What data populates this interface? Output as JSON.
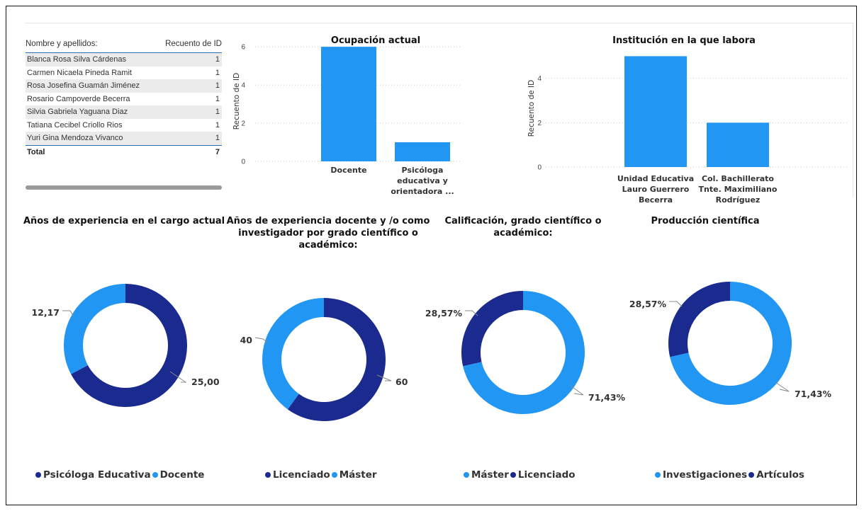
{
  "colors": {
    "dark": "#1a2a8f",
    "light": "#2196f3",
    "grid": "#c8c8c8"
  },
  "table": {
    "header_name": "Nombre y apellidos:",
    "header_count": "Recuento de ID",
    "rows": [
      {
        "name": "Blanca Rosa Silva Cárdenas",
        "count": "1"
      },
      {
        "name": "Carmen Nicaela Pineda Ramit",
        "count": "1"
      },
      {
        "name": "Rosa Josefina Guamán Jiménez",
        "count": "1"
      },
      {
        "name": "Rosario Campoverde Becerra",
        "count": "1"
      },
      {
        "name": "Silvia Gabriela Yaguana Diaz",
        "count": "1"
      },
      {
        "name": "Tatiana Cecibel Criollo Rios",
        "count": "1"
      },
      {
        "name": "Yuri Gina Mendoza Vivanco",
        "count": "1"
      }
    ],
    "total_label": "Total",
    "total_value": "7"
  },
  "chart_data": [
    {
      "type": "bar",
      "title": "Ocupación actual",
      "ylabel": "Recuento de ID",
      "categories": [
        "Docente",
        "Psicóloga educativa y orientadora ..."
      ],
      "category_lines": [
        [
          "Docente"
        ],
        [
          "Psicóloga",
          "educativa y",
          "orientadora ..."
        ]
      ],
      "values": [
        6,
        1
      ],
      "yticks": [
        0,
        2,
        4,
        6
      ],
      "ylim": [
        0,
        6.3
      ],
      "color": "#2196f3",
      "grid": true
    },
    {
      "type": "bar",
      "title": "Institución en la que labora",
      "ylabel": "Recuento de ID",
      "categories": [
        "Unidad Educativa Lauro Guerrero Becerra",
        "Col. Bachillerato Tnte. Maximiliano Rodríguez"
      ],
      "category_lines": [
        [
          "Unidad Educativa",
          "Lauro Guerrero",
          "Becerra"
        ],
        [
          "Col. Bachillerato",
          "Tnte. Maximiliano",
          "Rodríguez"
        ]
      ],
      "values": [
        5,
        2
      ],
      "yticks": [
        0,
        2,
        4
      ],
      "ylim": [
        0,
        5.3
      ],
      "color": "#2196f3",
      "grid": true
    },
    {
      "type": "pie",
      "title": "Años de experiencia en el cargo actual",
      "title_lines": [
        "Años de experiencia en el cargo actual"
      ],
      "labels": [
        "Psicóloga Educativa",
        "Docente"
      ],
      "values": [
        25.0,
        12.17
      ],
      "data_labels": [
        "25,00",
        "12,17"
      ],
      "colors": [
        "#1a2a8f",
        "#2196f3"
      ],
      "legend_position": "bottom"
    },
    {
      "type": "pie",
      "title": "Años de experiencia docente y /o como investigador por grado científico o académico:",
      "title_lines": [
        "Años de experiencia docente y /o como",
        "investigador por grado científico o",
        "académico:"
      ],
      "labels": [
        "Licenciado",
        "Máster"
      ],
      "values": [
        60,
        40
      ],
      "data_labels": [
        "60",
        "40"
      ],
      "colors": [
        "#1a2a8f",
        "#2196f3"
      ],
      "legend_position": "bottom"
    },
    {
      "type": "pie",
      "title": "Calificación, grado científico o académico:",
      "title_lines": [
        "Calificación, grado científico o",
        "académico:"
      ],
      "labels": [
        "Máster",
        "Licenciado"
      ],
      "values": [
        71.43,
        28.57
      ],
      "data_labels": [
        "71,43%",
        "28,57%"
      ],
      "colors": [
        "#2196f3",
        "#1a2a8f"
      ],
      "legend_position": "bottom"
    },
    {
      "type": "pie",
      "title": "Producción científica",
      "title_lines": [
        "Producción científica"
      ],
      "labels": [
        "Investigaciones",
        "Artículos"
      ],
      "values": [
        71.43,
        28.57
      ],
      "data_labels": [
        "71,43%",
        "28,57%"
      ],
      "colors": [
        "#2196f3",
        "#1a2a8f"
      ],
      "legend_position": "bottom"
    }
  ]
}
